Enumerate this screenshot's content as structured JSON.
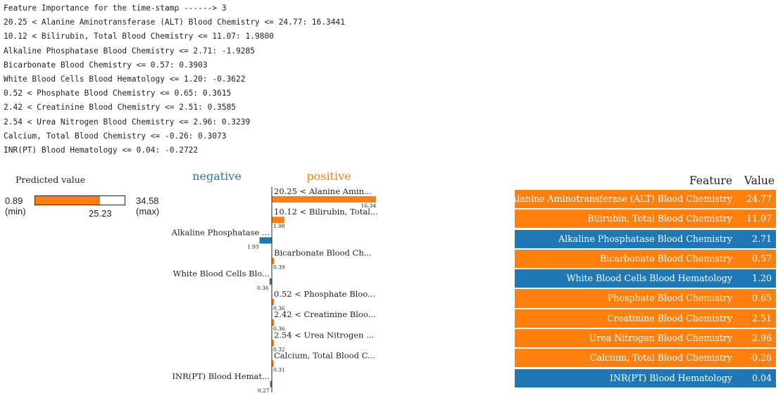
{
  "console": {
    "lines": [
      "Feature Importance for the time-stamp ------> 3",
      "20.25 < Alanine Aminotransferase (ALT) Blood Chemistry <= 24.77: 16.3441",
      "10.12 < Bilirubin, Total Blood Chemistry <= 11.07: 1.9800",
      "Alkaline Phosphatase Blood Chemistry <= 2.71: -1.9285",
      "Bicarbonate Blood Chemistry <= 0.57: 0.3903",
      "White Blood Cells Blood Hematology <= 1.20: -0.3622",
      "0.52 < Phosphate Blood Chemistry <= 0.65: 0.3615",
      "2.42 < Creatinine Blood Chemistry <= 2.51: 0.3585",
      "2.54 < Urea Nitrogen Blood Chemistry <= 2.96: 0.3239",
      "Calcium, Total Blood Chemistry <= -0.26: 0.3073",
      "INR(PT) Blood Hematology <= 0.04: -0.2722"
    ]
  },
  "chart_data": [
    {
      "type": "bar",
      "title": "Predicted value",
      "min": 0.89,
      "max": 34.58,
      "value": 25.23,
      "min_label": "0.89",
      "max_label": "34.58",
      "value_label": "25.23",
      "min_caption": "(min)",
      "max_caption": "(max)",
      "color": "#ff7f0e"
    },
    {
      "type": "bar",
      "orientation": "horizontal",
      "negative_label": "negative",
      "positive_label": "positive",
      "negative_color": "#1f77b4",
      "positive_color": "#ff7f0e",
      "xlim": [
        -1.93,
        16.34
      ],
      "bars": [
        {
          "label": "20.25 < Alanine Amin...",
          "value": 16.34,
          "value_label": "16.34"
        },
        {
          "label": "10.12 < Bilirubin, Total...",
          "value": 1.98,
          "value_label": "1.98"
        },
        {
          "label": "Alkaline Phosphatase ...",
          "value": -1.93,
          "value_label": "1.93"
        },
        {
          "label": "Bicarbonate Blood Ch...",
          "value": 0.39,
          "value_label": "0.39"
        },
        {
          "label": "White Blood Cells Blo...",
          "value": -0.36,
          "value_label": "0.36"
        },
        {
          "label": "0.52 < Phosphate Bloo...",
          "value": 0.36,
          "value_label": "0.36"
        },
        {
          "label": "2.42 < Creatinine Bloo...",
          "value": 0.36,
          "value_label": "0.36"
        },
        {
          "label": "2.54 < Urea Nitrogen ...",
          "value": 0.32,
          "value_label": "0.32"
        },
        {
          "label": "Calcium, Total Blood C...",
          "value": 0.31,
          "value_label": "0.31"
        },
        {
          "label": "INR(PT) Blood Hemat...",
          "value": -0.27,
          "value_label": "0.27"
        }
      ]
    },
    {
      "type": "table",
      "columns": [
        "Feature",
        "Value"
      ],
      "rows": [
        {
          "feature": "Alanine Aminotransferase (ALT) Blood Chemistry",
          "value": "24.77",
          "color": "#ff7f0e"
        },
        {
          "feature": "Bilirubin, Total Blood Chemistry",
          "value": "11.07",
          "color": "#ff7f0e"
        },
        {
          "feature": "Alkaline Phosphatase Blood Chemistry",
          "value": "2.71",
          "color": "#1f77b4"
        },
        {
          "feature": "Bicarbonate Blood Chemistry",
          "value": "0.57",
          "color": "#ff7f0e"
        },
        {
          "feature": "White Blood Cells Blood Hematology",
          "value": "1.20",
          "color": "#1f77b4"
        },
        {
          "feature": "Phosphate Blood Chemistry",
          "value": "0.65",
          "color": "#ff7f0e"
        },
        {
          "feature": "Creatinine Blood Chemistry",
          "value": "2.51",
          "color": "#ff7f0e"
        },
        {
          "feature": "Urea Nitrogen Blood Chemistry",
          "value": "2.96",
          "color": "#ff7f0e"
        },
        {
          "feature": "Calcium, Total Blood Chemistry",
          "value": "-0.26",
          "color": "#ff7f0e"
        },
        {
          "feature": "INR(PT) Blood Hematology",
          "value": "0.04",
          "color": "#1f77b4"
        }
      ]
    }
  ]
}
